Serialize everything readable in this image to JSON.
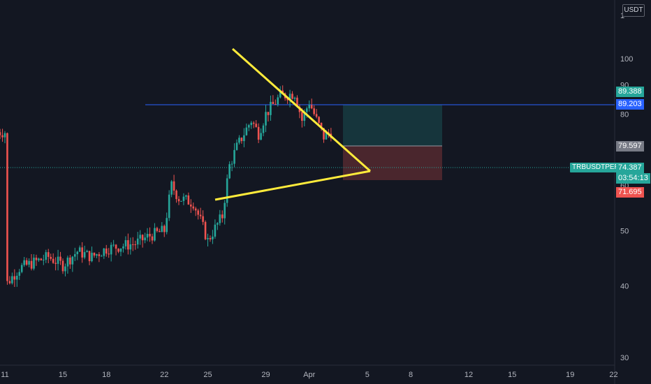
{
  "header": {
    "currency": "USDT"
  },
  "price_labels": {
    "take_profit": "89.388",
    "resistance": "89.203",
    "entry": "79.597",
    "symbol": "TRBUSDTPERP",
    "current": "74.387",
    "countdown": "03:54:13",
    "stop_loss": "71.695"
  },
  "colors": {
    "background": "#131722",
    "up": "#26a69a",
    "down": "#ef5350",
    "pattern": "#ffeb3b",
    "horizontal_line": "#2962ff"
  },
  "chart_data": {
    "type": "candlestick",
    "y_scale": "log",
    "y_ticks": [
      30,
      40,
      50,
      60,
      70,
      80,
      90,
      100
    ],
    "x_ticks": [
      "11",
      "15",
      "18",
      "22",
      "25",
      "29",
      "Apr",
      "5",
      "8",
      "12",
      "15",
      "19",
      "22"
    ],
    "close_anchor_points": [
      [
        "Mar 11",
        40
      ],
      [
        "Mar 12",
        43
      ],
      [
        "Mar 13",
        44
      ],
      [
        "Mar 14",
        45
      ],
      [
        "Mar 15",
        43.5
      ],
      [
        "Mar 16",
        46
      ],
      [
        "Mar 17",
        45
      ],
      [
        "Mar 18",
        46.5
      ],
      [
        "Mar 19",
        47
      ],
      [
        "Mar 20",
        47.5
      ],
      [
        "Mar 21",
        49
      ],
      [
        "Mar 22",
        50
      ],
      [
        "Mar 22.5",
        60
      ],
      [
        "Mar 23",
        57
      ],
      [
        "Mar 24",
        56
      ],
      [
        "Mar 25",
        48
      ],
      [
        "Mar 26",
        53
      ],
      [
        "Mar 26.5",
        65
      ],
      [
        "Mar 27",
        70
      ],
      [
        "Mar 28",
        78
      ],
      [
        "Mar 28.5",
        74
      ],
      [
        "Mar 29",
        80
      ],
      [
        "Mar 30",
        86
      ],
      [
        "Mar 31",
        87
      ],
      [
        "Mar 31.5",
        78
      ],
      [
        "Apr 1",
        84
      ],
      [
        "Apr 1.5",
        78
      ],
      [
        "Apr 2",
        73
      ],
      [
        "Apr 2.5",
        74.4
      ]
    ],
    "pattern": {
      "name": "symmetrical triangle",
      "upper_line": {
        "from": [
          "Mar 27",
          108
        ],
        "to": [
          "Apr 5",
          73
        ]
      },
      "lower_line": {
        "from": [
          "Mar 25.5",
          68
        ],
        "to": [
          "Apr 5",
          73
        ]
      }
    },
    "horizontal_line": 89.203,
    "position": {
      "entry": 79.597,
      "take_profit": 89.388,
      "stop_loss": 71.695,
      "start": "Apr 3",
      "end": "Apr 9.4"
    },
    "current_price": 74.387
  }
}
